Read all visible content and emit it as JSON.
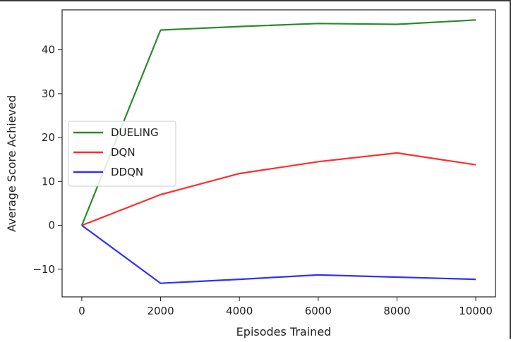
{
  "chart_data": {
    "type": "line",
    "title": "",
    "xlabel": "Episodes Trained",
    "ylabel": "Average Score Achieved",
    "xlim": [
      -500,
      10500
    ],
    "ylim": [
      -16.3,
      49.1
    ],
    "xticks": [
      0,
      2000,
      4000,
      6000,
      8000,
      10000
    ],
    "yticks": [
      -10,
      0,
      10,
      20,
      30,
      40
    ],
    "x": [
      0,
      2000,
      4000,
      6000,
      8000,
      10000
    ],
    "series": [
      {
        "name": "DUELING",
        "color": "#2a8a2a",
        "values": [
          0,
          44.5,
          45.3,
          46.0,
          45.8,
          46.8
        ]
      },
      {
        "name": "DQN",
        "color": "#ff2d2d",
        "values": [
          0,
          7.0,
          11.8,
          14.5,
          16.5,
          13.8
        ]
      },
      {
        "name": "DDQN",
        "color": "#3030ff",
        "values": [
          0,
          -13.2,
          -12.3,
          -11.3,
          -11.8,
          -12.3
        ]
      }
    ],
    "legend": "center-left",
    "grid": false
  }
}
